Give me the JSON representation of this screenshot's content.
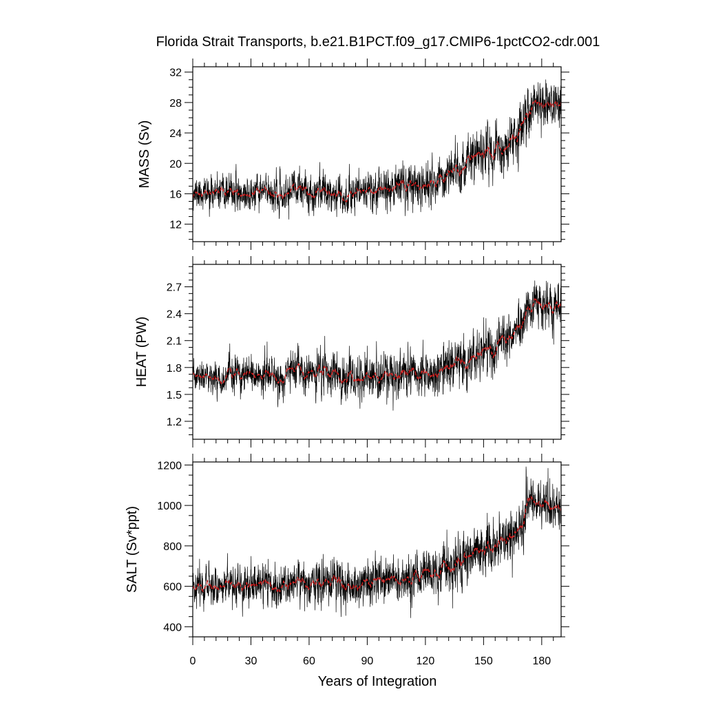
{
  "figure": {
    "title": "Florida Strait Transports, b.e21.B1PCT.f09_g17.CMIP6-1pctCO2-cdr.001",
    "xlabel": "Years of Integration"
  },
  "chart_data": [
    {
      "type": "line",
      "ylabel": "MASS (Sv)",
      "xlim": [
        0,
        190
      ],
      "ylim": [
        9.7,
        32.7
      ],
      "xticks": [
        0,
        30,
        60,
        90,
        120,
        150,
        180
      ],
      "yticks": [
        12,
        16,
        20,
        24,
        28,
        32
      ],
      "yticklabels": [
        "12",
        "16",
        "20",
        "24",
        "28",
        "32"
      ],
      "grid": false,
      "series": [
        {
          "color": "#000000",
          "smooth": {
            "x": [
              0,
              5,
              10,
              15,
              20,
              25,
              30,
              35,
              40,
              44,
              48,
              52,
              57,
              60,
              65,
              70,
              75,
              78,
              82,
              86,
              90,
              95,
              100,
              105,
              110,
              115,
              120,
              125,
              130,
              135,
              140,
              143,
              146,
              150,
              155,
              160,
              165,
              170,
              173,
              176,
              180,
              183,
              186,
              190
            ],
            "y": [
              16.2,
              16.0,
              16.1,
              15.8,
              16.3,
              16.0,
              15.8,
              16.2,
              16.5,
              15.2,
              15.8,
              16.8,
              16.2,
              16.0,
              16.7,
              16.4,
              16.3,
              15.6,
              16.1,
              16.4,
              16.6,
              16.5,
              16.8,
              16.9,
              17.0,
              17.2,
              17.4,
              17.8,
              18.3,
              18.8,
              19.6,
              20.4,
              20.9,
              21.3,
              21.6,
              22.1,
              23.0,
              25.0,
              27.0,
              27.6,
              27.4,
              27.7,
              27.1,
              27.6
            ]
          },
          "noise_sd": [
            1.0,
            1.0,
            1.0,
            1.0,
            1.05,
            1.05,
            1.1,
            1.1,
            1.1,
            1.1,
            1.15,
            1.15,
            1.15,
            1.2,
            1.2,
            1.2,
            1.25,
            1.25,
            1.3,
            1.3,
            1.3,
            1.35,
            1.35,
            1.35,
            1.35,
            1.4,
            1.4,
            1.45,
            1.5,
            1.5,
            1.55,
            1.6,
            1.6,
            1.6,
            1.6,
            1.6,
            1.7,
            1.7,
            1.8,
            1.6,
            1.5,
            1.5,
            1.6,
            1.6
          ],
          "seed": 11
        },
        {
          "color": "#d11f1f",
          "style": "dashed"
        }
      ]
    },
    {
      "type": "line",
      "ylabel": "HEAT (PW)",
      "xlim": [
        0,
        190
      ],
      "ylim": [
        1.0,
        2.95
      ],
      "xticks": [
        0,
        30,
        60,
        90,
        120,
        150,
        180
      ],
      "yticks": [
        1.2,
        1.5,
        1.8,
        2.1,
        2.4,
        2.7
      ],
      "yticklabels": [
        "1.2",
        "1.5",
        "1.8",
        "2.1",
        "2.4",
        "2.7"
      ],
      "grid": false,
      "series": [
        {
          "color": "#000000",
          "smooth": {
            "x": [
              0,
              5,
              10,
              15,
              20,
              25,
              30,
              35,
              40,
              44,
              48,
              52,
              57,
              60,
              65,
              70,
              75,
              78,
              82,
              86,
              90,
              95,
              100,
              105,
              110,
              115,
              120,
              125,
              130,
              135,
              140,
              143,
              146,
              150,
              155,
              160,
              165,
              170,
              173,
              176,
              180,
              183,
              186,
              190
            ],
            "y": [
              1.7,
              1.68,
              1.7,
              1.68,
              1.72,
              1.7,
              1.68,
              1.72,
              1.74,
              1.62,
              1.7,
              1.8,
              1.72,
              1.7,
              1.76,
              1.74,
              1.72,
              1.63,
              1.68,
              1.7,
              1.7,
              1.7,
              1.7,
              1.71,
              1.71,
              1.72,
              1.72,
              1.73,
              1.75,
              1.78,
              1.85,
              1.93,
              1.97,
              2.0,
              2.02,
              2.06,
              2.12,
              2.28,
              2.48,
              2.55,
              2.5,
              2.52,
              2.45,
              2.5
            ]
          },
          "noise_sd": [
            0.09,
            0.09,
            0.09,
            0.09,
            0.095,
            0.095,
            0.1,
            0.1,
            0.1,
            0.1,
            0.1,
            0.1,
            0.105,
            0.105,
            0.11,
            0.11,
            0.11,
            0.115,
            0.115,
            0.12,
            0.12,
            0.12,
            0.125,
            0.125,
            0.125,
            0.125,
            0.13,
            0.13,
            0.135,
            0.135,
            0.14,
            0.14,
            0.14,
            0.14,
            0.14,
            0.14,
            0.14,
            0.14,
            0.15,
            0.13,
            0.12,
            0.12,
            0.13,
            0.13
          ],
          "seed": 23
        },
        {
          "color": "#d11f1f",
          "style": "dashed"
        }
      ]
    },
    {
      "type": "line",
      "ylabel": "SALT (Sv*ppt)",
      "xlim": [
        0,
        190
      ],
      "ylim": [
        350,
        1215
      ],
      "xticks": [
        0,
        30,
        60,
        90,
        120,
        150,
        180
      ],
      "xticklabels": [
        "0",
        "30",
        "60",
        "90",
        "120",
        "150",
        "180"
      ],
      "yticks": [
        400,
        600,
        800,
        1000,
        1200
      ],
      "yticklabels": [
        "400",
        "600",
        "800",
        "1000",
        "1200"
      ],
      "grid": false,
      "series": [
        {
          "color": "#000000",
          "smooth": {
            "x": [
              0,
              5,
              10,
              15,
              20,
              25,
              30,
              35,
              40,
              44,
              48,
              52,
              57,
              60,
              65,
              70,
              75,
              78,
              82,
              86,
              90,
              95,
              100,
              105,
              110,
              115,
              120,
              125,
              130,
              135,
              140,
              143,
              146,
              150,
              155,
              160,
              165,
              170,
              173,
              176,
              180,
              183,
              186,
              190
            ],
            "y": [
              610,
              605,
              610,
              600,
              615,
              608,
              598,
              612,
              622,
              580,
              600,
              635,
              615,
              605,
              628,
              620,
              618,
              590,
              605,
              615,
              620,
              620,
              630,
              635,
              640,
              645,
              650,
              665,
              680,
              700,
              730,
              755,
              770,
              785,
              795,
              810,
              840,
              905,
              1000,
              1020,
              1010,
              1020,
              990,
              1010
            ]
          },
          "noise_sd": [
            45,
            45,
            45,
            45,
            47,
            47,
            48,
            48,
            50,
            50,
            50,
            50,
            52,
            52,
            53,
            53,
            54,
            54,
            55,
            55,
            56,
            56,
            57,
            57,
            58,
            58,
            58,
            60,
            60,
            62,
            63,
            64,
            64,
            64,
            64,
            64,
            66,
            66,
            70,
            62,
            58,
            58,
            60,
            60
          ],
          "seed": 37
        },
        {
          "color": "#d11f1f",
          "style": "dashed"
        }
      ]
    }
  ]
}
